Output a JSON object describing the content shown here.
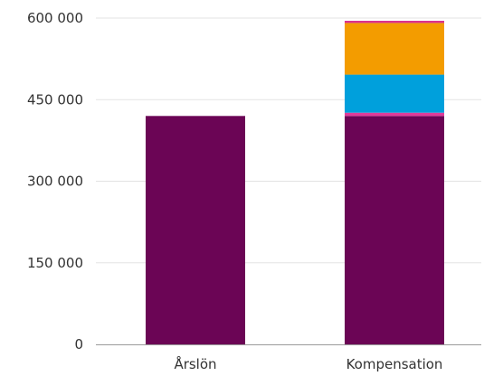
{
  "chart_data": {
    "type": "bar",
    "stacked": true,
    "categories": [
      "Årslön",
      "Kompensation"
    ],
    "series": [
      {
        "color": "#6b0555",
        "values": [
          420000,
          420000
        ]
      },
      {
        "color": "#e03c9a",
        "values": [
          0,
          6000
        ]
      },
      {
        "color": "#00a0dc",
        "values": [
          0,
          70000
        ]
      },
      {
        "color": "#f39c00",
        "values": [
          0,
          95000
        ]
      },
      {
        "color": "#d9318f",
        "values": [
          0,
          4000
        ]
      }
    ],
    "yticks": [
      0,
      150000,
      300000,
      450000,
      600000
    ],
    "ytick_labels": [
      "0",
      "150 000",
      "300 000",
      "450 000",
      "600 000"
    ],
    "ylim": [
      0,
      600000
    ],
    "grid": true,
    "legend": "none",
    "title": "",
    "xlabel": "",
    "ylabel": ""
  }
}
